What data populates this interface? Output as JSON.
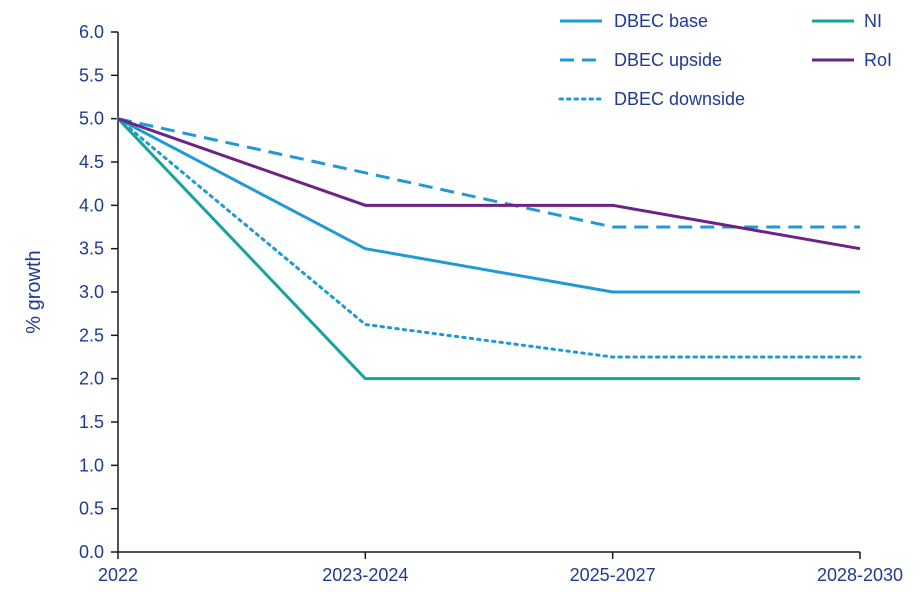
{
  "chart_data": {
    "type": "line",
    "categories": [
      "2022",
      "2023-2024",
      "2025-2027",
      "2028-2030"
    ],
    "ylabel": "% growth",
    "xlabel": "",
    "ylim": [
      0,
      6
    ],
    "yticks": [
      "0.0",
      "0.5",
      "1.0",
      "1.5",
      "2.0",
      "2.5",
      "3.0",
      "3.5",
      "4.0",
      "4.5",
      "5.0",
      "5.5",
      "6.0"
    ],
    "grid": false,
    "legend_position": "top-right",
    "series": [
      {
        "name": "DBEC base",
        "values": [
          5.0,
          3.5,
          3.0,
          3.0
        ],
        "color": "#1f9ad6",
        "style": "solid"
      },
      {
        "name": "DBEC upside",
        "values": [
          5.0,
          4.375,
          3.75,
          3.75
        ],
        "color": "#1f9ad6",
        "style": "dashed"
      },
      {
        "name": "DBEC downside",
        "values": [
          5.0,
          2.625,
          2.25,
          2.25
        ],
        "color": "#1f9ad6",
        "style": "dotted"
      },
      {
        "name": "NI",
        "values": [
          5.0,
          2.0,
          2.0,
          2.0
        ],
        "color": "#17a398",
        "style": "solid"
      },
      {
        "name": "RoI",
        "values": [
          5.0,
          4.0,
          4.0,
          3.5
        ],
        "color": "#6c2383",
        "style": "solid"
      }
    ]
  }
}
